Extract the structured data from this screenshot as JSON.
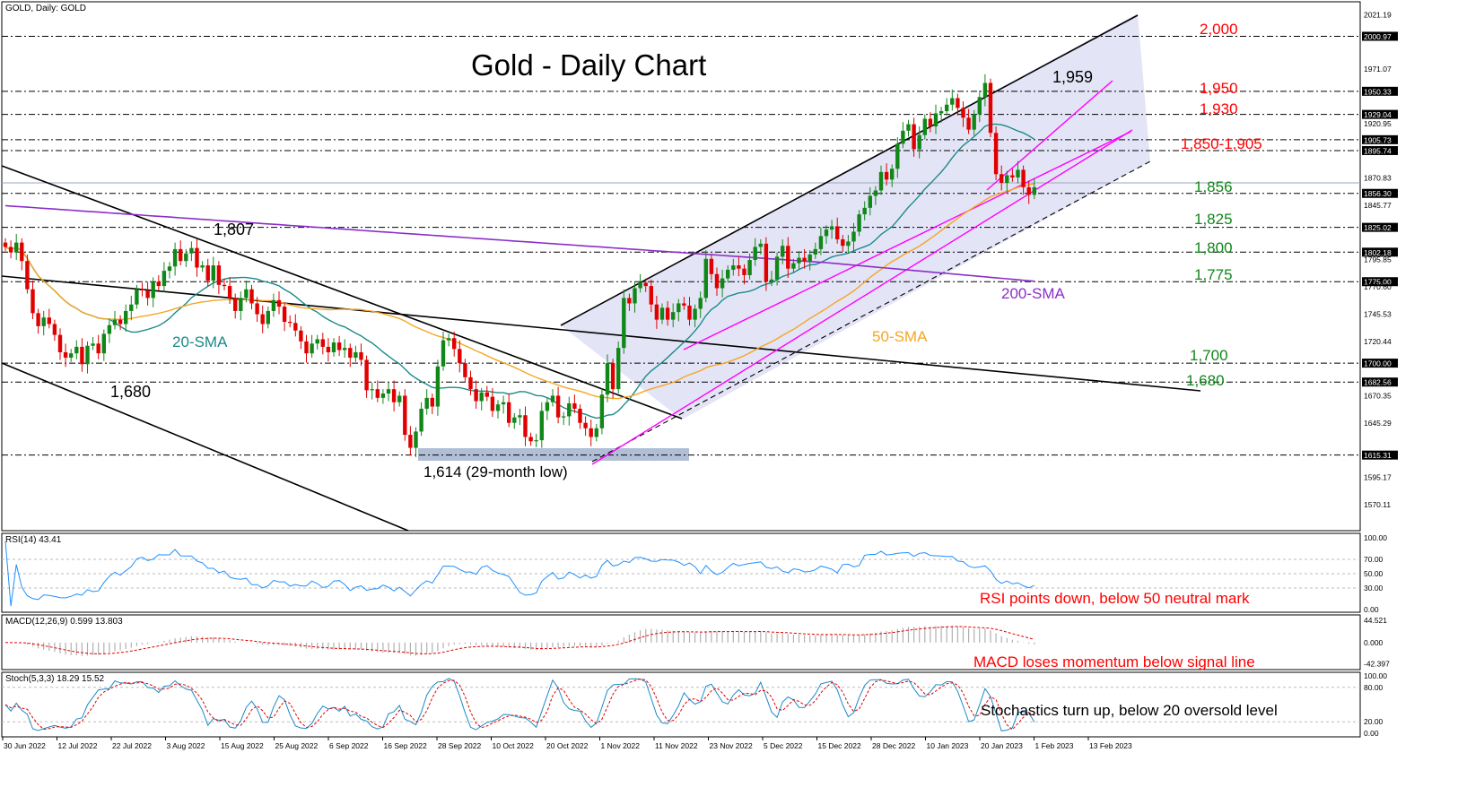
{
  "chart_data": [
    {
      "panel": "price",
      "type": "candlestick",
      "header": "GOLD, Daily:  GOLD",
      "title": "Gold - Daily Chart",
      "ylim": [
        1550,
        2025
      ],
      "ytick_labels": [
        "2021.19",
        "2000.97",
        "1971.07",
        "1950.33",
        "1929.04",
        "1920.95",
        "1905.73",
        "1895.74",
        "1870.83",
        "1856.30",
        "1845.77",
        "1825.02",
        "1802.18",
        "1795.85",
        "1775.00",
        "1770.60",
        "1745.53",
        "1720.44",
        "1700.00",
        "1682.56",
        "1670.35",
        "1645.29",
        "1615.31",
        "1595.17",
        "1570.11"
      ],
      "ytick_values": [
        2021.19,
        2000.97,
        1971.07,
        1950.33,
        1929.04,
        1920.95,
        1905.73,
        1895.74,
        1870.83,
        1856.3,
        1845.77,
        1825.02,
        1802.18,
        1795.85,
        1775.0,
        1770.6,
        1745.53,
        1720.44,
        1700.0,
        1682.56,
        1670.35,
        1645.29,
        1615.31,
        1595.17,
        1570.11
      ],
      "x_labels": [
        "30 Jun 2022",
        "12 Jul 2022",
        "22 Jul 2022",
        "3 Aug 2022",
        "15 Aug 2022",
        "25 Aug 2022",
        "6 Sep 2022",
        "16 Sep 2022",
        "28 Sep 2022",
        "10 Oct 2022",
        "20 Oct 2022",
        "1 Nov 2022",
        "11 Nov 2022",
        "23 Nov 2022",
        "5 Dec 2022",
        "15 Dec 2022",
        "28 Dec 2022",
        "10 Jan 2023",
        "20 Jan 2023",
        "1 Feb 2023",
        "13 Feb 2023"
      ],
      "close": [
        1807,
        1802,
        1811,
        1794,
        1768,
        1746,
        1734,
        1742,
        1736,
        1726,
        1710,
        1705,
        1709,
        1715,
        1699,
        1716,
        1718,
        1709,
        1727,
        1735,
        1740,
        1736,
        1748,
        1754,
        1768,
        1767,
        1760,
        1775,
        1771,
        1785,
        1789,
        1805,
        1794,
        1801,
        1806,
        1788,
        1790,
        1776,
        1790,
        1772,
        1771,
        1760,
        1748,
        1760,
        1768,
        1755,
        1745,
        1736,
        1748,
        1758,
        1752,
        1738,
        1737,
        1730,
        1720,
        1709,
        1718,
        1722,
        1715,
        1710,
        1719,
        1712,
        1714,
        1705,
        1710,
        1703,
        1675,
        1676,
        1668,
        1672,
        1676,
        1664,
        1670,
        1634,
        1622,
        1637,
        1658,
        1668,
        1660,
        1697,
        1721,
        1723,
        1713,
        1700,
        1687,
        1676,
        1665,
        1673,
        1669,
        1656,
        1662,
        1664,
        1645,
        1650,
        1652,
        1632,
        1628,
        1629,
        1656,
        1664,
        1670,
        1650,
        1651,
        1663,
        1658,
        1645,
        1640,
        1632,
        1640,
        1671,
        1700,
        1676,
        1714,
        1760,
        1755,
        1769,
        1774,
        1771,
        1754,
        1740,
        1751,
        1740,
        1747,
        1755,
        1753,
        1740,
        1750,
        1760,
        1796,
        1782,
        1769,
        1778,
        1786,
        1790,
        1787,
        1781,
        1795,
        1807,
        1810,
        1775,
        1777,
        1798,
        1808,
        1787,
        1792,
        1797,
        1794,
        1800,
        1805,
        1817,
        1823,
        1826,
        1814,
        1808,
        1812,
        1821,
        1837,
        1843,
        1854,
        1859,
        1876,
        1869,
        1879,
        1902,
        1914,
        1920,
        1897,
        1910,
        1925,
        1918,
        1930,
        1932,
        1938,
        1944,
        1935,
        1926,
        1915,
        1929,
        1945,
        1958,
        1912,
        1874,
        1866,
        1873,
        1871,
        1878,
        1862,
        1855,
        1862
      ],
      "annotations": {
        "levels": [
          {
            "label": "2,000",
            "value": 2000,
            "color": "#ff0000"
          },
          {
            "label": "1,950",
            "value": 1950,
            "color": "#ff0000"
          },
          {
            "label": "1,930",
            "value": 1929,
            "color": "#ff0000"
          },
          {
            "label": "1,850-1,905",
            "value": 1905,
            "color": "#ff0000"
          },
          {
            "label": "1,856",
            "value": 1856,
            "color": "#11871a"
          },
          {
            "label": "1,825",
            "value": 1825,
            "color": "#11871a"
          },
          {
            "label": "1,800",
            "value": 1802,
            "color": "#11871a"
          },
          {
            "label": "1,775",
            "value": 1775,
            "color": "#11871a"
          },
          {
            "label": "1,700",
            "value": 1700,
            "color": "#11871a"
          },
          {
            "label": "1,680",
            "value": 1682,
            "color": "#11871a"
          }
        ],
        "notes": [
          "1,959",
          "1,807",
          "1,680",
          "1,614 (29-month low)",
          "20-SMA",
          "50-SMA",
          "200-SMA"
        ]
      },
      "sma_labels": {
        "sma20": "20-SMA",
        "sma50": "50-SMA",
        "sma200": "200-SMA"
      },
      "colors": {
        "up": "#11871a",
        "down": "#e00000",
        "sma20": "#1c8a8a",
        "sma50": "#f5a623",
        "sma200": "#8b2fc9",
        "trend": "#ff00ff",
        "channel_fill": "#e4e4f7"
      }
    },
    {
      "panel": "rsi",
      "type": "line",
      "header": "RSI(14) 43.41",
      "ylim": [
        0,
        100
      ],
      "ytick_labels": [
        "100.00",
        "70.00",
        "50.00",
        "30.00",
        "0.00"
      ],
      "ytick_values": [
        100,
        70,
        50,
        30,
        0
      ],
      "note": "RSI points down, below 50 neutral mark"
    },
    {
      "panel": "macd",
      "type": "bar+line",
      "header": "MACD(12,26,9) 0.599 13.803",
      "ylim": [
        -45,
        48
      ],
      "ytick_labels": [
        "44.521",
        "0.000",
        "-42.397"
      ],
      "ytick_values": [
        44.521,
        0,
        -42.397
      ],
      "note": "MACD loses momentum below signal line"
    },
    {
      "panel": "stoch",
      "type": "line",
      "header": "Stoch(5,3,3) 18.29 15.52",
      "ylim": [
        0,
        100
      ],
      "ytick_labels": [
        "100.00",
        "80.00",
        "20.00",
        "0.00"
      ],
      "ytick_values": [
        100,
        80,
        20,
        0
      ],
      "note": "Stochastics turn up, below 20 oversold level"
    }
  ],
  "page": {
    "price_header": "GOLD, Daily:  GOLD",
    "title": "Gold - Daily Chart",
    "rsi_header": "RSI(14) 43.41",
    "macd_header": "MACD(12,26,9) 0.599 13.803",
    "stoch_header": "Stoch(5,3,3) 18.29 15.52",
    "rsi_note": "RSI points down, below 50 neutral mark",
    "macd_note": "MACD loses momentum below signal line",
    "stoch_note": "Stochastics turn up, below 20 oversold level",
    "note_high": "1,959",
    "note_807": "1,807",
    "note_680": "1,680",
    "note_low": "1,614 (29-month low)",
    "sma20": "20-SMA",
    "sma50": "50-SMA",
    "sma200": "200-SMA"
  }
}
